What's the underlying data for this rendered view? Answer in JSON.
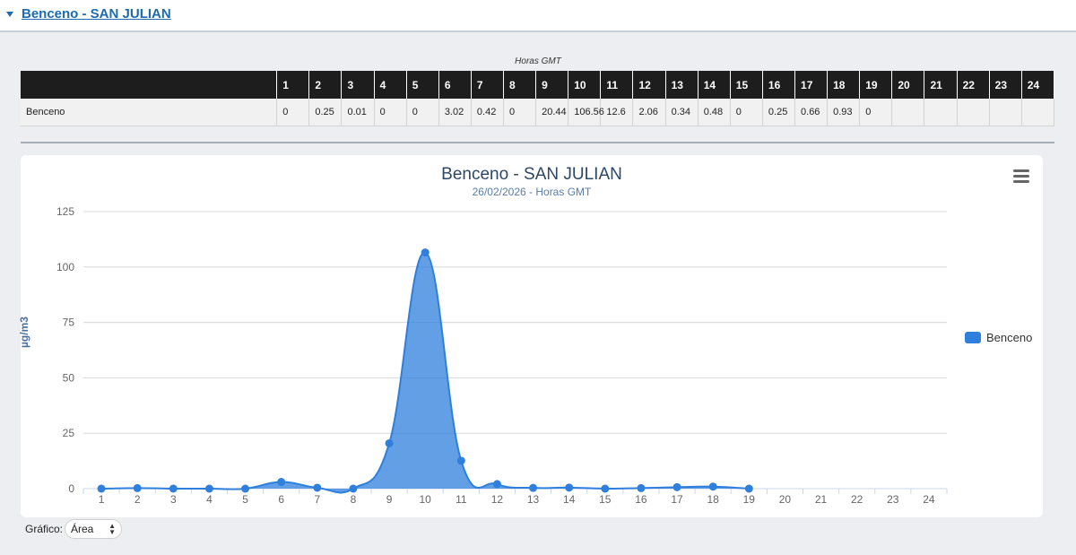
{
  "header": {
    "title": "Benceno - SAN JULIAN"
  },
  "table": {
    "caption": "Horas GMT",
    "hours": [
      "1",
      "2",
      "3",
      "4",
      "5",
      "6",
      "7",
      "8",
      "9",
      "10",
      "11",
      "12",
      "13",
      "14",
      "15",
      "16",
      "17",
      "18",
      "19",
      "20",
      "21",
      "22",
      "23",
      "24"
    ],
    "row_label": "Benceno",
    "values": [
      "0",
      "0.25",
      "0.01",
      "0",
      "0",
      "3.02",
      "0.42",
      "0",
      "20.44",
      "106.56",
      "12.6",
      "2.06",
      "0.34",
      "0.48",
      "0",
      "0.25",
      "0.66",
      "0.93",
      "0",
      "",
      "",
      "",
      "",
      ""
    ]
  },
  "chart_data": {
    "type": "area",
    "title": "Benceno - SAN JULIAN",
    "subtitle": "26/02/2026 - Horas GMT",
    "ylabel": "µg/m3",
    "xlabel": "",
    "categories": [
      "1",
      "2",
      "3",
      "4",
      "5",
      "6",
      "7",
      "8",
      "9",
      "10",
      "11",
      "12",
      "13",
      "14",
      "15",
      "16",
      "17",
      "18",
      "19",
      "20",
      "21",
      "22",
      "23",
      "24"
    ],
    "yticks": [
      "0",
      "25",
      "50",
      "75",
      "100",
      "125"
    ],
    "ylim": [
      0,
      125
    ],
    "series": [
      {
        "name": "Benceno",
        "color": "#2f7fdc",
        "values": [
          0,
          0.25,
          0.01,
          0,
          0,
          3.02,
          0.42,
          0,
          20.44,
          106.56,
          12.6,
          2.06,
          0.34,
          0.48,
          0,
          0.25,
          0.66,
          0.93,
          0,
          null,
          null,
          null,
          null,
          null
        ]
      }
    ],
    "grid": true,
    "legend": "right"
  },
  "controls": {
    "chart_type_label": "Gráfico:",
    "chart_type_value": "Área"
  }
}
